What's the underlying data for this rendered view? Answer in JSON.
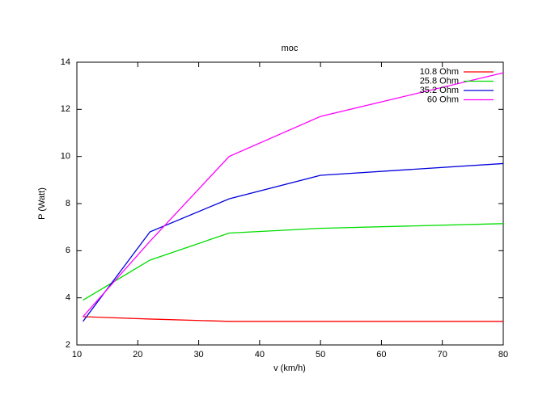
{
  "chart_data": {
    "type": "line",
    "title": "moc",
    "x_label": "v (km/h)",
    "y_label": "P (Watt)",
    "x": [
      11,
      22,
      35,
      50,
      80
    ],
    "series": [
      {
        "name": "10.8 Ohm",
        "color": "#ff0000",
        "values": [
          3.2,
          3.1,
          3.0,
          3.0,
          3.0
        ]
      },
      {
        "name": "25.8 Ohm",
        "color": "#00dd00",
        "values": [
          3.9,
          5.6,
          6.75,
          6.95,
          7.15
        ]
      },
      {
        "name": "35.2 Ohm",
        "color": "#0000dd",
        "values": [
          3.0,
          6.8,
          8.2,
          9.2,
          9.7
        ]
      },
      {
        "name": "60 Ohm",
        "color": "#ff00ff",
        "values": [
          3.2,
          6.4,
          10.0,
          11.7,
          13.55
        ]
      }
    ],
    "xlim": [
      10,
      80
    ],
    "xticks": [
      10,
      20,
      30,
      40,
      50,
      60,
      70,
      80
    ],
    "ylim": [
      2,
      14
    ],
    "yticks": [
      2,
      4,
      6,
      8,
      10,
      12,
      14
    ],
    "grid": false,
    "legend": "top-right"
  }
}
